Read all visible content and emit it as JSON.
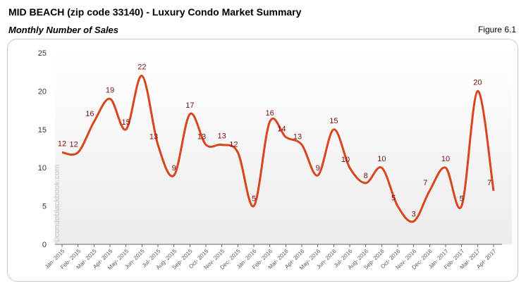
{
  "header": {
    "title": "MID BEACH (zip code 33140) - Luxury Condo Market Summary",
    "subtitle": "Monthly Number of Sales",
    "figure": "Figure 6.1"
  },
  "watermark": "©condoblackbook.com",
  "colors": {
    "line": "#D9451C",
    "label": "#7B1010"
  },
  "chart_data": {
    "type": "line",
    "smooth": true,
    "title": "Monthly Number of Sales",
    "categories": [
      "Jan- 2015",
      "Feb- 2015",
      "Mar- 2015",
      "Apr- 2015",
      "May- 2015",
      "Jun- 2015",
      "Jul- 2015",
      "Aug- 2015",
      "Sep- 2015",
      "Oct- 2015",
      "Nov- 2015",
      "Dec- 2015",
      "Jan- 2016",
      "Feb- 2016",
      "Mar- 2016",
      "Apr- 2016",
      "May- 2016",
      "Jun- 2016",
      "Jul- 2016",
      "Aug- 2016",
      "Sep- 2016",
      "Oct- 2016",
      "Nov- 2016",
      "Dec- 2016",
      "Jan- 2017",
      "Feb- 2017",
      "Mar- 2017",
      "Apr- 2017"
    ],
    "values": [
      12,
      12,
      16,
      19,
      15,
      22,
      13,
      9,
      17,
      13,
      13,
      12,
      5,
      16,
      14,
      13,
      9,
      15,
      10,
      8,
      10,
      5,
      3,
      7,
      10,
      5,
      20,
      7
    ],
    "ylim": [
      0,
      25
    ],
    "yticks": [
      0,
      5,
      10,
      15,
      20,
      25
    ],
    "grid": false,
    "legend": "none"
  }
}
